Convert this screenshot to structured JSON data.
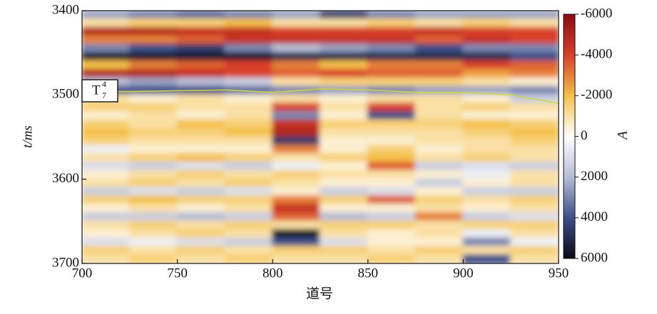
{
  "chart_data": {
    "type": "heatmap",
    "x_label": "道号",
    "y_label": "t/ms",
    "colorbar_label": "A",
    "xlim": [
      700,
      950
    ],
    "xticks": [
      700,
      750,
      800,
      850,
      900,
      950
    ],
    "ylim": [
      3400,
      3700
    ],
    "yticks": [
      3400,
      3500,
      3600,
      3700
    ],
    "zlim": [
      -6000,
      6000
    ],
    "zticks": [
      -6000,
      -4000,
      -2000,
      0,
      2000,
      4000,
      6000
    ],
    "colorscale": [
      {
        "value": -6000,
        "color": "#8b0a12"
      },
      {
        "value": -4000,
        "color": "#d8402a"
      },
      {
        "value": -2000,
        "color": "#f4c048"
      },
      {
        "value": 0,
        "color": "#ffffff"
      },
      {
        "value": 2000,
        "color": "#b7bdd6"
      },
      {
        "value": 4000,
        "color": "#3d4f8a"
      },
      {
        "value": 6000,
        "color": "#0a0a14"
      }
    ],
    "x": [
      700,
      725,
      750,
      775,
      800,
      825,
      850,
      875,
      900,
      925,
      950
    ],
    "y": [
      3400,
      3410,
      3420,
      3430,
      3440,
      3450,
      3460,
      3470,
      3480,
      3490,
      3500,
      3510,
      3520,
      3530,
      3540,
      3550,
      3560,
      3570,
      3580,
      3590,
      3600,
      3610,
      3620,
      3630,
      3640,
      3650,
      3660,
      3670,
      3680,
      3690,
      3700
    ],
    "z": [
      [
        2500,
        3000,
        3500,
        3000,
        2500,
        4500,
        3000,
        2500,
        2500,
        2500
      ],
      [
        -1000,
        -1500,
        -1500,
        -2000,
        -1000,
        -1000,
        -1500,
        -1000,
        -1500,
        -1000
      ],
      [
        -5000,
        -5000,
        -4500,
        -4500,
        -4000,
        -4000,
        -4000,
        -4500,
        -4000,
        -4000
      ],
      [
        -3000,
        -3000,
        -3500,
        -4500,
        -4500,
        -4500,
        -4500,
        -3500,
        -4500,
        -4000
      ],
      [
        3000,
        4000,
        4500,
        3000,
        2000,
        2500,
        3000,
        4000,
        3000,
        3000
      ],
      [
        5500,
        5500,
        5500,
        5500,
        5000,
        5000,
        5000,
        5000,
        5000,
        4000
      ],
      [
        -2000,
        -3000,
        -3500,
        -4000,
        -3000,
        -2000,
        -3000,
        -3000,
        -4000,
        -3500
      ],
      [
        -5000,
        -5000,
        -4500,
        -4000,
        -3500,
        -4000,
        -3500,
        -3500,
        -2500,
        -3000
      ],
      [
        2000,
        2500,
        2000,
        1500,
        -1000,
        -1500,
        -1500,
        -1500,
        -1000,
        -500
      ],
      [
        4000,
        4000,
        4000,
        3500,
        3000,
        2500,
        3000,
        2500,
        2500,
        3000
      ],
      [
        -1000,
        -500,
        -1000,
        -500,
        -1000,
        -500,
        -1000,
        -1000,
        -500,
        1500
      ],
      [
        -1500,
        -1500,
        -1000,
        -1000,
        -4000,
        -1000,
        -4000,
        -1000,
        -1500,
        -1000
      ],
      [
        -500,
        -1000,
        -500,
        -1000,
        3000,
        -500,
        4000,
        -1000,
        -500,
        -500
      ],
      [
        -1500,
        -1000,
        -2000,
        -1500,
        -4500,
        -1500,
        -1500,
        -1500,
        -2000,
        -1500
      ],
      [
        -2000,
        -1500,
        -1500,
        -2000,
        -5000,
        -1000,
        -1000,
        -1000,
        -1500,
        -2000
      ],
      [
        -1500,
        -1000,
        -1000,
        -1000,
        4500,
        -500,
        -500,
        -1000,
        -1000,
        -1500
      ],
      [
        500,
        -500,
        -500,
        -500,
        -3000,
        -500,
        -1500,
        -500,
        -1000,
        -1000
      ],
      [
        -1000,
        -1500,
        -2000,
        -1500,
        -1000,
        -1500,
        -2000,
        -1000,
        -1500,
        -1000
      ],
      [
        1000,
        1500,
        1000,
        1500,
        500,
        -500,
        -3500,
        1500,
        1000,
        1500
      ],
      [
        -500,
        -1000,
        -1500,
        -1000,
        -1500,
        -1000,
        -1000,
        -500,
        500,
        -1000
      ],
      [
        -1000,
        -1500,
        -1000,
        -1500,
        -1000,
        -500,
        -500,
        1500,
        -500,
        -1000
      ],
      [
        1500,
        1000,
        1500,
        1000,
        -500,
        1500,
        1000,
        -500,
        1500,
        1500
      ],
      [
        -1500,
        -2000,
        -1500,
        -1500,
        -3000,
        -1500,
        -3500,
        -1500,
        -1000,
        -1500
      ],
      [
        -500,
        -1000,
        -500,
        -1000,
        -4500,
        -500,
        -500,
        -1000,
        -500,
        -1000
      ],
      [
        1500,
        1500,
        2000,
        1500,
        -3500,
        2000,
        1500,
        -3000,
        1500,
        1000
      ],
      [
        -1000,
        -1500,
        -1000,
        -1500,
        -1000,
        -1500,
        -1500,
        -1000,
        -1500,
        -1500
      ],
      [
        -500,
        -1000,
        -1500,
        -1000,
        6000,
        -1000,
        -500,
        -1000,
        500,
        -1000
      ],
      [
        1000,
        500,
        1000,
        1500,
        4000,
        1000,
        -500,
        -500,
        3000,
        500
      ],
      [
        -1500,
        -1000,
        -1500,
        -1000,
        -1500,
        -1500,
        -1000,
        -1500,
        -1000,
        -1500
      ],
      [
        -1000,
        -1500,
        -1000,
        -1500,
        -1000,
        -1000,
        -1500,
        -1000,
        4000,
        -1000
      ]
    ],
    "horizon": {
      "label": {
        "text": "T",
        "superscript": "4",
        "subscript": "7"
      },
      "color": "#c8d84a",
      "x": [
        700,
        725,
        750,
        775,
        800,
        825,
        850,
        875,
        900,
        925,
        950
      ],
      "y": [
        3496,
        3496,
        3495,
        3494,
        3497,
        3493,
        3494,
        3497,
        3497,
        3500,
        3510
      ]
    }
  }
}
